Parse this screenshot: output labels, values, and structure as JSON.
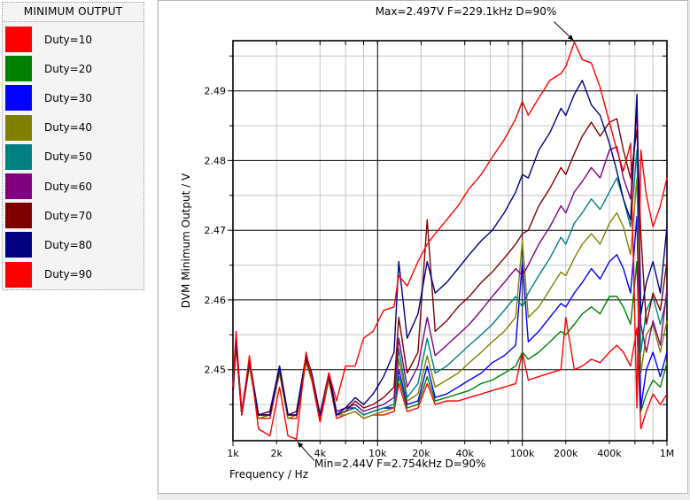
{
  "legend": {
    "title": "MINIMUM OUTPUT"
  },
  "chart_data": {
    "type": "line",
    "title": "",
    "xlabel": "Frequency / Hz",
    "ylabel": "DVM Minimum Output / V",
    "x_scale": "log",
    "x_unit": "kHz",
    "xlim": [
      1,
      1000
    ],
    "ylim": [
      2.4398,
      2.4972
    ],
    "grid": {
      "major_color": "#000000",
      "minor_color": "#c6c6c6",
      "frame_color": "#000000"
    },
    "x_ticks": {
      "major": [
        {
          "f": 1,
          "label": "1k"
        },
        {
          "f": 10,
          "label": "10k"
        },
        {
          "f": 100,
          "label": "100k"
        },
        {
          "f": 1000,
          "label": "1M"
        }
      ],
      "minor": [
        {
          "f": 2,
          "label": "2k"
        },
        {
          "f": 4,
          "label": "4k"
        },
        {
          "f": 6,
          "label": ""
        },
        {
          "f": 8,
          "label": ""
        },
        {
          "f": 20,
          "label": "20k"
        },
        {
          "f": 40,
          "label": "40k"
        },
        {
          "f": 60,
          "label": ""
        },
        {
          "f": 80,
          "label": ""
        },
        {
          "f": 200,
          "label": "200k"
        },
        {
          "f": 400,
          "label": "400k"
        },
        {
          "f": 600,
          "label": ""
        },
        {
          "f": 800,
          "label": ""
        }
      ]
    },
    "y_ticks": {
      "major": [
        {
          "v": 2.45,
          "label": "2.45"
        },
        {
          "v": 2.46,
          "label": "2.46"
        },
        {
          "v": 2.47,
          "label": "2.47"
        },
        {
          "v": 2.48,
          "label": "2.48"
        },
        {
          "v": 2.49,
          "label": "2.49"
        }
      ],
      "minor": [
        2.445,
        2.455,
        2.465,
        2.475,
        2.485,
        2.495
      ]
    },
    "annotations": [
      {
        "id": "max",
        "text": "Max=2.497V F=229.1kHz D=90%",
        "f_kHz": 229.1,
        "v": 2.497
      },
      {
        "id": "min",
        "text": "Min=2.44V F=2.754kHz D=90%",
        "f_kHz": 2.754,
        "v": 2.44
      }
    ],
    "x_kHz": [
      1.0,
      1.05,
      1.15,
      1.3,
      1.5,
      1.8,
      2.1,
      2.4,
      2.75,
      3.2,
      3.5,
      4.0,
      4.6,
      5.2,
      6.0,
      7.0,
      8.0,
      9.3,
      11,
      13,
      14,
      16,
      19,
      22,
      25,
      30,
      36,
      43,
      52,
      62,
      75,
      90,
      100,
      110,
      130,
      155,
      185,
      200,
      229,
      260,
      300,
      345,
      400,
      450,
      500,
      560,
      620,
      660,
      720,
      800,
      900,
      1000
    ],
    "series": [
      {
        "name": "Duty=10",
        "color": "#ff0000",
        "values": [
          2.4465,
          2.4535,
          2.4435,
          2.4505,
          2.443,
          2.443,
          2.4495,
          2.443,
          2.443,
          2.451,
          2.4485,
          2.4425,
          2.4485,
          2.443,
          2.4435,
          2.444,
          2.443,
          2.4435,
          2.4435,
          2.444,
          2.448,
          2.444,
          2.4445,
          2.448,
          2.445,
          2.4455,
          2.4455,
          2.446,
          2.4465,
          2.447,
          2.4475,
          2.448,
          2.4525,
          2.4485,
          2.449,
          2.4495,
          2.45,
          2.4575,
          2.45,
          2.4505,
          2.4515,
          2.451,
          2.4525,
          2.4535,
          2.4525,
          2.4505,
          2.456,
          2.4415,
          2.444,
          2.4465,
          2.445,
          2.4465
        ]
      },
      {
        "name": "Duty=20",
        "color": "#008000",
        "values": [
          2.4465,
          2.454,
          2.4435,
          2.451,
          2.4435,
          2.4435,
          2.45,
          2.4435,
          2.4435,
          2.4515,
          2.449,
          2.4435,
          2.449,
          2.4435,
          2.444,
          2.4445,
          2.4435,
          2.444,
          2.4445,
          2.4445,
          2.449,
          2.4445,
          2.445,
          2.449,
          2.4455,
          2.446,
          2.4465,
          2.447,
          2.448,
          2.4485,
          2.4495,
          2.4505,
          2.4525,
          2.4515,
          2.4525,
          2.454,
          2.4555,
          2.455,
          2.4565,
          2.458,
          2.459,
          2.458,
          2.4605,
          2.4605,
          2.459,
          2.4565,
          2.4655,
          2.444,
          2.4465,
          2.4485,
          2.4475,
          2.451
        ]
      },
      {
        "name": "Duty=30",
        "color": "#0000ff",
        "values": [
          2.447,
          2.4545,
          2.444,
          2.4515,
          2.4435,
          2.444,
          2.4505,
          2.4435,
          2.444,
          2.452,
          2.4495,
          2.4435,
          2.4495,
          2.444,
          2.4445,
          2.4445,
          2.4435,
          2.444,
          2.4445,
          2.4445,
          2.45,
          2.445,
          2.4455,
          2.4505,
          2.446,
          2.4465,
          2.4475,
          2.4485,
          2.4495,
          2.451,
          2.452,
          2.4535,
          2.4655,
          2.454,
          2.4555,
          2.4575,
          2.4595,
          2.459,
          2.461,
          2.4625,
          2.4645,
          2.463,
          2.4655,
          2.4665,
          2.4645,
          2.461,
          2.472,
          2.4445,
          2.45,
          2.4525,
          2.449,
          2.4525
        ]
      },
      {
        "name": "Duty=40",
        "color": "#808000",
        "values": [
          2.4465,
          2.4535,
          2.4435,
          2.4505,
          2.443,
          2.4435,
          2.4495,
          2.443,
          2.4435,
          2.451,
          2.4485,
          2.443,
          2.4485,
          2.4435,
          2.4435,
          2.444,
          2.443,
          2.4435,
          2.444,
          2.4445,
          2.4515,
          2.4455,
          2.4465,
          2.452,
          2.4475,
          2.4485,
          2.4495,
          2.451,
          2.4525,
          2.454,
          2.4555,
          2.4575,
          2.4685,
          2.4575,
          2.459,
          2.4615,
          2.464,
          2.4635,
          2.466,
          2.468,
          2.4695,
          2.468,
          2.471,
          2.4725,
          2.4705,
          2.4665,
          2.4775,
          2.4495,
          2.455,
          2.4565,
          2.4525,
          2.457
        ]
      },
      {
        "name": "Duty=50",
        "color": "#008080",
        "values": [
          2.4465,
          2.454,
          2.4435,
          2.451,
          2.4435,
          2.4435,
          2.45,
          2.4435,
          2.4435,
          2.4515,
          2.449,
          2.4435,
          2.449,
          2.4435,
          2.444,
          2.4445,
          2.4435,
          2.444,
          2.4445,
          2.445,
          2.453,
          2.446,
          2.448,
          2.4545,
          2.4495,
          2.4505,
          2.452,
          2.4535,
          2.455,
          2.4565,
          2.4585,
          2.4605,
          2.459,
          2.461,
          2.4635,
          2.466,
          2.469,
          2.468,
          2.471,
          2.4725,
          2.4745,
          2.473,
          2.4755,
          2.4775,
          2.4745,
          2.4705,
          2.4815,
          2.4525,
          2.4585,
          2.4605,
          2.4565,
          2.4605
        ]
      },
      {
        "name": "Duty=60",
        "color": "#800080",
        "values": [
          2.447,
          2.4545,
          2.444,
          2.4515,
          2.4435,
          2.4435,
          2.4505,
          2.4435,
          2.4435,
          2.452,
          2.4495,
          2.4435,
          2.4495,
          2.444,
          2.4445,
          2.445,
          2.444,
          2.4445,
          2.445,
          2.446,
          2.4545,
          2.4475,
          2.4505,
          2.4575,
          2.452,
          2.4535,
          2.455,
          2.4565,
          2.4585,
          2.4605,
          2.4625,
          2.4645,
          2.4635,
          2.465,
          2.468,
          2.4705,
          2.4735,
          2.4725,
          2.4755,
          2.477,
          2.479,
          2.4775,
          2.4815,
          2.482,
          2.4775,
          2.4745,
          2.4875,
          2.4565,
          2.4525,
          2.457,
          2.4535,
          2.4615
        ]
      },
      {
        "name": "Duty=70",
        "color": "#800000",
        "values": [
          2.4465,
          2.454,
          2.4435,
          2.451,
          2.4435,
          2.444,
          2.45,
          2.4435,
          2.444,
          2.4515,
          2.449,
          2.4435,
          2.449,
          2.4435,
          2.444,
          2.4455,
          2.4445,
          2.445,
          2.446,
          2.4475,
          2.4575,
          2.4495,
          2.4525,
          2.4715,
          2.4555,
          2.457,
          2.459,
          2.4605,
          2.4625,
          2.464,
          2.466,
          2.468,
          2.4695,
          2.47,
          2.4735,
          2.476,
          2.479,
          2.478,
          2.481,
          2.4835,
          2.4855,
          2.4835,
          2.4855,
          2.486,
          2.4815,
          2.4775,
          2.4845,
          2.4695,
          2.4565,
          2.461,
          2.4585,
          2.4655
        ]
      },
      {
        "name": "Duty=80",
        "color": "#000080",
        "values": [
          2.447,
          2.4545,
          2.4435,
          2.4515,
          2.4435,
          2.4435,
          2.4505,
          2.4435,
          2.4435,
          2.452,
          2.4495,
          2.4435,
          2.4495,
          2.4435,
          2.4445,
          2.446,
          2.445,
          2.4465,
          2.449,
          2.4525,
          2.4655,
          2.4545,
          2.458,
          2.4655,
          2.461,
          2.4625,
          2.4645,
          2.4665,
          2.4685,
          2.47,
          2.4725,
          2.4755,
          2.478,
          2.4775,
          2.4815,
          2.484,
          2.4875,
          2.4865,
          2.4895,
          2.4915,
          2.488,
          2.4865,
          2.4825,
          2.4785,
          2.4745,
          2.4715,
          2.4895,
          2.458,
          2.4625,
          2.4655,
          2.461,
          2.4705
        ]
      },
      {
        "name": "Duty=90",
        "color": "#ff0000",
        "values": [
          2.4475,
          2.4555,
          2.4435,
          2.452,
          2.4415,
          2.4405,
          2.4475,
          2.4405,
          2.44,
          2.4525,
          2.449,
          2.4425,
          2.4495,
          2.4455,
          2.4505,
          2.4505,
          2.4545,
          2.4555,
          2.4585,
          2.459,
          2.4635,
          2.462,
          2.4655,
          2.468,
          2.4695,
          2.4715,
          2.4735,
          2.476,
          2.478,
          2.4805,
          2.483,
          2.486,
          2.4885,
          2.4865,
          2.489,
          2.4915,
          2.4925,
          2.4935,
          2.497,
          2.4945,
          2.494,
          2.4905,
          2.4855,
          2.4815,
          2.4785,
          2.4825,
          2.4445,
          2.4815,
          2.475,
          2.4705,
          2.4735,
          2.4775
        ]
      }
    ]
  }
}
